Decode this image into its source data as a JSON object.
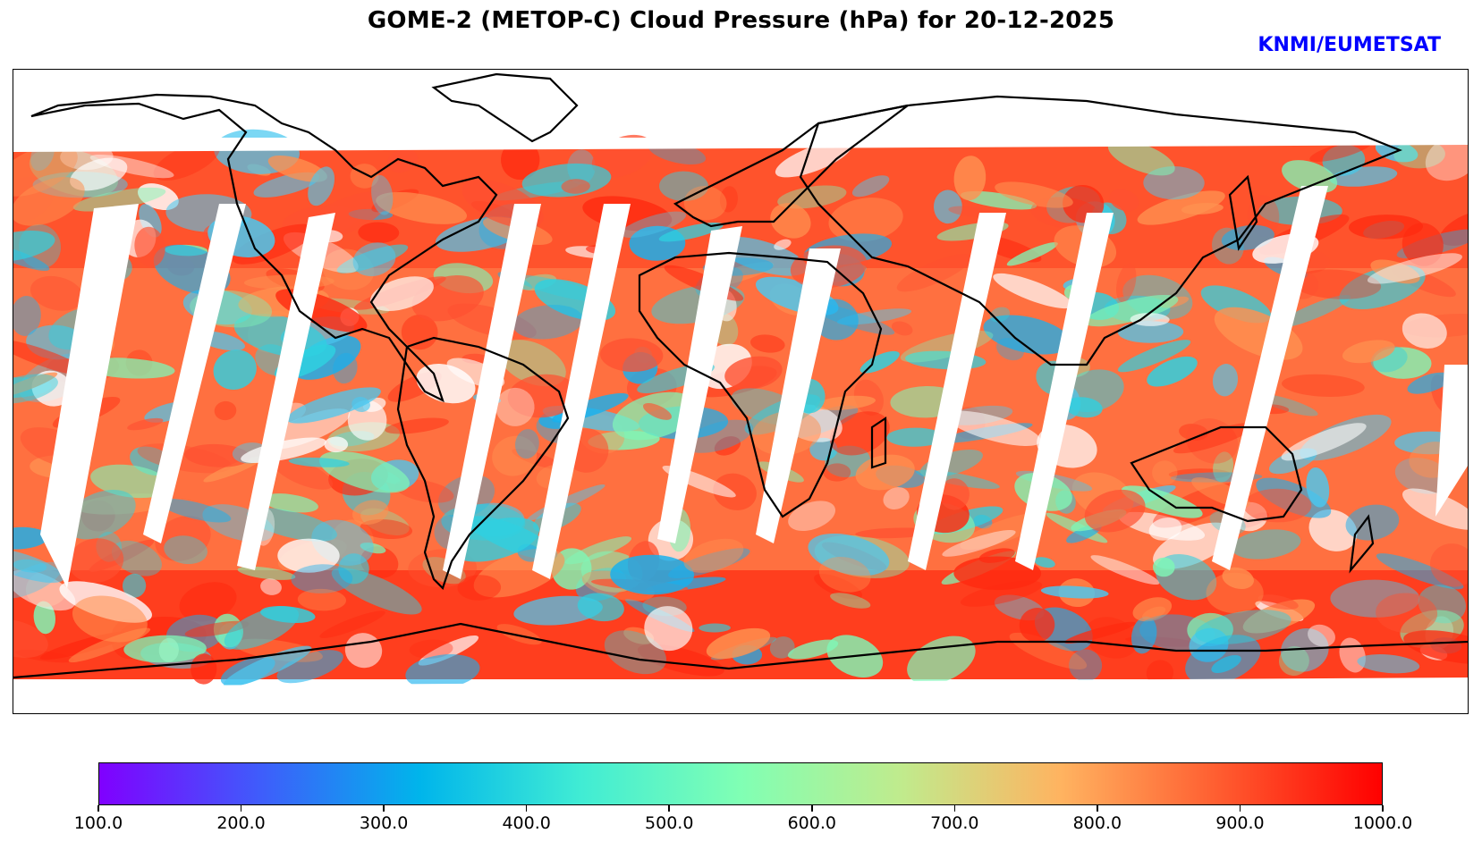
{
  "header": {
    "title": "GOME-2 (METOP-C) Cloud Pressure (hPa) for 20-12-2025",
    "credit": "KNMI/EUMETSAT",
    "credit_color": "#0000ff"
  },
  "map": {
    "projection": "plate-carree",
    "variable": "Cloud Pressure",
    "units": "hPa",
    "dominant_low_latitude_pressure": "mixed 300-1000",
    "dominant_southern_ocean_pressure": "850-1000"
  },
  "colorbar": {
    "min": 100.0,
    "max": 1000.0,
    "colormap": "rainbow",
    "colors": [
      "#8000ff",
      "#3f5cfb",
      "#00b5eb",
      "#40ecd4",
      "#80ffb4",
      "#c0eb8d",
      "#ffb360",
      "#ff5b2f",
      "#ff0000"
    ],
    "ticks": [
      "100.0",
      "200.0",
      "300.0",
      "400.0",
      "500.0",
      "600.0",
      "700.0",
      "800.0",
      "900.0",
      "1000.0"
    ]
  }
}
